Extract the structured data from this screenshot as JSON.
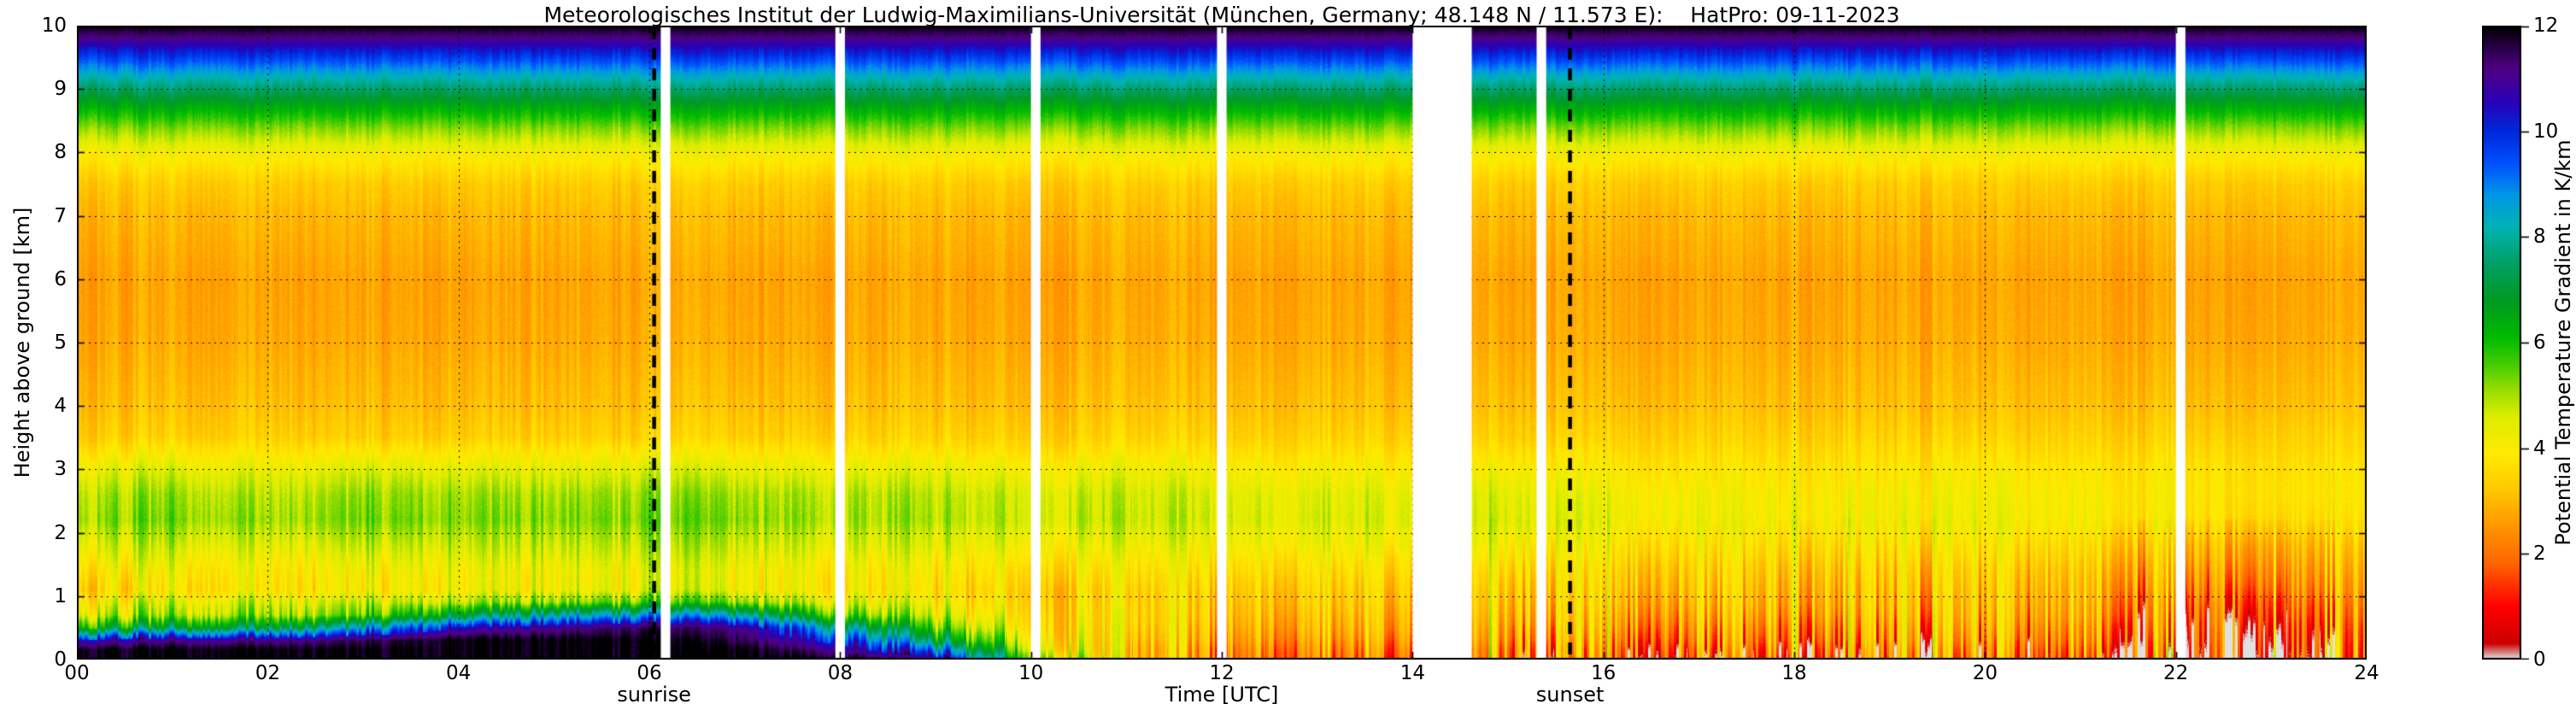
{
  "title": "Meteorologisches Institut der Ludwig-Maximilians-Universität (München, Germany; 48.148 N / 11.573 E):    HatPro: 09-11-2023",
  "axes": {
    "xlabel": "Time [UTC]",
    "ylabel": "Height above ground [km]",
    "colorbar_label": "Potential Temperature Gradient in K/km"
  },
  "annotations": {
    "sunrise_label": "sunrise",
    "sunset_label": "sunset"
  },
  "colors": {
    "background": "#ffffff",
    "axis": "#000000"
  },
  "chart_data": {
    "type": "heatmap",
    "title": "Meteorologisches Institut der Ludwig-Maximilians-Universität (München, Germany; 48.148 N / 11.573 E):    HatPro: 09-11-2023",
    "xlabel": "Time [UTC]",
    "ylabel": "Height above ground [km]",
    "colorbar_label": "Potential Temperature Gradient in K/km",
    "xlim": [
      0,
      24
    ],
    "ylim": [
      0,
      10
    ],
    "clim": [
      0,
      12
    ],
    "x_tick_times": [
      0,
      2,
      4,
      6,
      8,
      10,
      12,
      14,
      16,
      18,
      20,
      22,
      24
    ],
    "x_tick_labels": [
      "00",
      "02",
      "04",
      "06",
      "08",
      "10",
      "12",
      "14",
      "16",
      "18",
      "20",
      "22",
      "24"
    ],
    "y_ticks": [
      0,
      1,
      2,
      3,
      4,
      5,
      6,
      7,
      8,
      9,
      10
    ],
    "colorbar_ticks": [
      0,
      2,
      4,
      6,
      8,
      10,
      12
    ],
    "gridlines": {
      "x_every_h": 2,
      "y_every_km": 1,
      "style": "dotted"
    },
    "sunrise_time": 6.05,
    "sunset_time": 15.65,
    "data_gaps": [
      [
        6.12,
        6.22
      ],
      [
        7.95,
        8.05
      ],
      [
        10.0,
        10.1
      ],
      [
        11.95,
        12.05
      ],
      [
        14.0,
        14.62
      ],
      [
        15.3,
        15.4
      ],
      [
        22.0,
        22.1
      ]
    ],
    "colormap": [
      [
        0.0,
        "#e0e0e0"
      ],
      [
        0.3,
        "#cd0000"
      ],
      [
        1.0,
        "#ff0000"
      ],
      [
        1.8,
        "#ff6400"
      ],
      [
        2.5,
        "#ff9600"
      ],
      [
        3.2,
        "#ffc800"
      ],
      [
        3.9,
        "#ffeb00"
      ],
      [
        4.6,
        "#ddee00"
      ],
      [
        5.1,
        "#99dd00"
      ],
      [
        5.6,
        "#44cc00"
      ],
      [
        6.1,
        "#00bb00"
      ],
      [
        6.8,
        "#009922"
      ],
      [
        7.5,
        "#00a066"
      ],
      [
        8.2,
        "#00b4b4"
      ],
      [
        8.8,
        "#0096e6"
      ],
      [
        9.4,
        "#0050ff"
      ],
      [
        10.0,
        "#0028dc"
      ],
      [
        10.6,
        "#2d00b4"
      ],
      [
        11.2,
        "#500082"
      ],
      [
        11.6,
        "#280046"
      ],
      [
        12.0,
        "#000000"
      ]
    ],
    "times_utc": [
      0,
      1,
      2,
      3,
      4,
      5,
      6,
      7,
      8,
      9,
      10,
      11,
      12,
      13,
      14,
      15,
      16,
      17,
      18,
      19,
      20,
      21,
      22,
      23,
      24
    ],
    "heights_km": [
      0,
      0.15,
      0.3,
      0.5,
      0.7,
      0.9,
      1.1,
      1.4,
      1.8,
      2.2,
      2.6,
      3.0,
      3.5,
      4,
      5,
      6,
      7,
      7.5,
      8,
      8.4,
      8.8,
      9.2,
      9.5,
      9.8,
      10
    ],
    "values_K_per_km": [
      [
        12,
        12,
        12,
        12,
        12,
        12,
        12,
        12,
        12,
        11,
        6,
        3,
        2.5,
        2,
        2,
        2.5,
        2,
        1.5,
        1.5,
        1.8,
        2,
        1.8,
        1.2,
        1,
        1
      ],
      [
        12,
        12,
        12,
        12,
        12,
        12,
        12,
        12,
        11,
        9,
        5,
        3,
        2.5,
        2.2,
        2.2,
        2.5,
        2.2,
        1.8,
        1.8,
        2,
        2.2,
        2,
        1.3,
        1.1,
        1.1
      ],
      [
        10.5,
        11,
        11,
        11.5,
        12,
        12,
        12,
        11.5,
        10,
        7,
        4.5,
        3.2,
        2.8,
        2.5,
        2.5,
        2.8,
        2.5,
        2.2,
        2.2,
        2.4,
        2.5,
        2.3,
        1.5,
        1.3,
        1.3
      ],
      [
        6.5,
        7,
        7,
        8.5,
        10.5,
        11,
        11.5,
        11,
        8,
        5.5,
        4,
        3.4,
        3,
        2.8,
        2.8,
        3,
        2.8,
        2.5,
        2.5,
        2.6,
        2.8,
        2.5,
        1.8,
        1.5,
        1.5
      ],
      [
        4.8,
        5,
        5,
        5.5,
        7,
        8,
        8.5,
        8,
        5.5,
        4.5,
        3.8,
        3.5,
        3.2,
        3,
        3,
        3.2,
        3,
        2.8,
        2.8,
        2.9,
        3,
        2.8,
        2,
        1.8,
        1.8
      ],
      [
        4.2,
        4.5,
        4.5,
        4.8,
        5,
        5.2,
        5.5,
        5.2,
        4.5,
        4,
        3.6,
        3.4,
        3.3,
        3.2,
        3.2,
        3.3,
        3.2,
        3,
        3,
        3,
        3.1,
        2.9,
        2.2,
        2,
        2
      ],
      [
        3.6,
        3.8,
        3.8,
        4,
        4.2,
        4.2,
        4.3,
        4.2,
        3.9,
        3.7,
        3.5,
        3.4,
        3.4,
        3.3,
        3.3,
        3.4,
        3.3,
        3.2,
        3.1,
        3.1,
        3.2,
        3,
        2.5,
        2.3,
        2.3
      ],
      [
        4,
        4.1,
        3.9,
        4.2,
        4.3,
        4.2,
        4.3,
        4.2,
        4,
        3.9,
        3.8,
        3.7,
        3.7,
        3.6,
        3.6,
        3.7,
        3.5,
        3.4,
        3.3,
        3.3,
        3.4,
        3.2,
        2.8,
        2.6,
        2.6
      ],
      [
        4.6,
        4.7,
        4.4,
        4.8,
        4.8,
        4.7,
        4.8,
        4.7,
        4.5,
        4.4,
        4.3,
        4.2,
        4.2,
        4.1,
        4.1,
        4.2,
        3.9,
        3.8,
        3.7,
        3.7,
        3.8,
        3.6,
        3.2,
        3,
        3
      ],
      [
        5.2,
        5.3,
        5,
        5.4,
        5.3,
        5.2,
        5.3,
        5.2,
        5,
        4.9,
        4.8,
        4.7,
        4.6,
        4.5,
        4.5,
        4.6,
        4.3,
        4.2,
        4.1,
        4.1,
        4.2,
        4,
        3.8,
        3.6,
        3.6
      ],
      [
        5,
        5.1,
        4.8,
        5.2,
        5.1,
        5,
        5.1,
        5,
        4.9,
        4.8,
        4.7,
        4.6,
        4.5,
        4.4,
        4.4,
        4.5,
        4.2,
        4.1,
        4,
        4,
        4.1,
        4,
        3.9,
        3.8,
        3.8
      ],
      [
        4.4,
        4.5,
        4.3,
        4.6,
        4.5,
        4.4,
        4.5,
        4.4,
        4.3,
        4.3,
        4.2,
        4.2,
        4.1,
        4,
        4,
        4.1,
        3.9,
        3.8,
        3.8,
        3.8,
        3.9,
        3.8,
        3.8,
        3.7,
        3.7
      ],
      3.4,
      3.1,
      2.8,
      2.7,
      3.0,
      3.3,
      4.1,
      5.3,
      6.7,
      8.3,
      9.7,
      11.1,
      12
    ]
  }
}
